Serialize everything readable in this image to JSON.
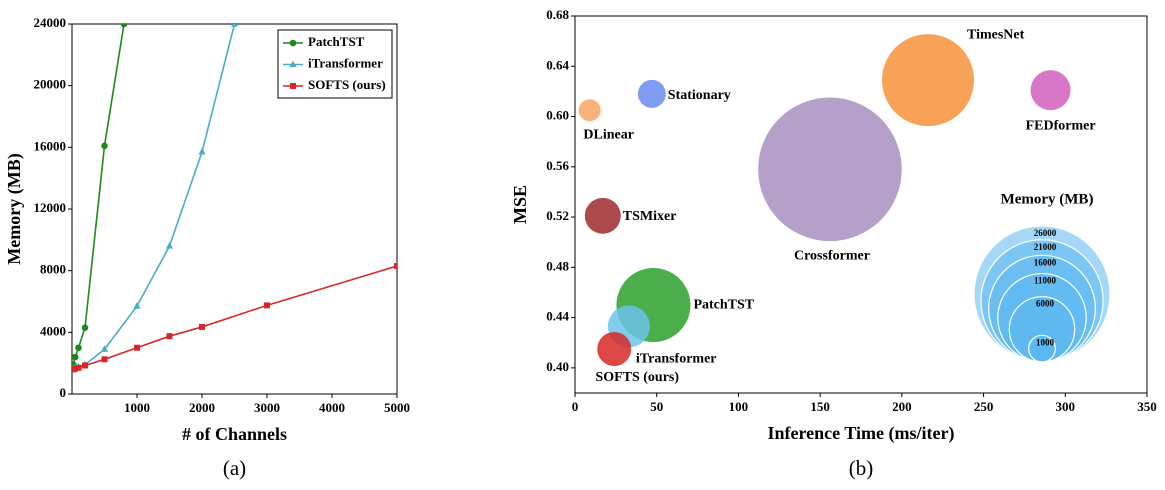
{
  "chart_data": [
    {
      "type": "line",
      "caption": "(a)",
      "xlabel": "# of Channels",
      "ylabel": "Memory (MB)",
      "xlim": [
        0,
        5000
      ],
      "xticks": [
        1000,
        2000,
        3000,
        4000,
        5000
      ],
      "ylim": [
        0,
        24000
      ],
      "yticks": [
        0,
        4000,
        8000,
        12000,
        16000,
        20000,
        24000
      ],
      "legend": "upper right",
      "series": [
        {
          "name": "PatchTST",
          "color": "#1a8a1a",
          "marker": "circle",
          "x": [
            21,
            50,
            100,
            200,
            500,
            800
          ],
          "values": [
            1900,
            2400,
            3000,
            4300,
            16100,
            24000
          ]
        },
        {
          "name": "iTransformer",
          "color": "#4bacc6",
          "marker": "triangle",
          "x": [
            21,
            50,
            100,
            200,
            500,
            1000,
            1500,
            2000,
            2500
          ],
          "values": [
            1650,
            1700,
            1750,
            1900,
            2900,
            5700,
            9600,
            15700,
            24000
          ]
        },
        {
          "name": "SOFTS (ours)",
          "color": "#d62728",
          "marker": "square",
          "x": [
            21,
            50,
            100,
            200,
            500,
            1000,
            1500,
            2000,
            3000,
            5000
          ],
          "values": [
            1600,
            1650,
            1700,
            1850,
            2250,
            3000,
            3750,
            4350,
            5750,
            8300
          ]
        }
      ]
    },
    {
      "type": "bubble",
      "caption": "(b)",
      "xlabel": "Inference Time (ms/iter)",
      "ylabel": "MSE",
      "xlim": [
        0,
        350
      ],
      "xticks": [
        0,
        50,
        100,
        150,
        200,
        250,
        300,
        350
      ],
      "ylim": [
        0.38,
        0.68
      ],
      "yticks": [
        {
          "value": 0.4,
          "label": "0.40"
        },
        0.44,
        0.48,
        0.52,
        0.56,
        {
          "value": 0.6,
          "label": "0.60"
        },
        0.64,
        0.68
      ],
      "points": [
        {
          "name": "Crossformer",
          "color": "#a78fc0",
          "x": 156,
          "y": 0.558,
          "memory": 29000
        },
        {
          "name": "TimesNet",
          "color": "#f7923a",
          "x": 216,
          "y": 0.629,
          "memory": 11900
        },
        {
          "name": "FEDformer",
          "color": "#d15ebd",
          "x": 291,
          "y": 0.621,
          "memory": 2250
        },
        {
          "name": "DLinear",
          "color": "#f4a460",
          "x": 9,
          "y": 0.605,
          "memory": 680
        },
        {
          "name": "Stationary",
          "color": "#6b8cf0",
          "x": 47,
          "y": 0.618,
          "memory": 1100
        },
        {
          "name": "TSMixer",
          "color": "#9e2a2b",
          "x": 17,
          "y": 0.521,
          "memory": 1820
        },
        {
          "name": "PatchTST",
          "color": "#2ca02c",
          "x": 48,
          "y": 0.45,
          "memory": 7700
        },
        {
          "name": "iTransformer",
          "color": "#6cc3ea",
          "x": 33,
          "y": 0.433,
          "memory": 2480
        },
        {
          "name": "SOFTS (ours)",
          "color": "#d62728",
          "x": 24,
          "y": 0.415,
          "memory": 1625
        }
      ],
      "size_legend": {
        "title": "Memory (MB)",
        "values": [
          26000,
          21000,
          16000,
          11000,
          6000,
          1000
        ],
        "color": "#5bb8f0"
      }
    }
  ]
}
